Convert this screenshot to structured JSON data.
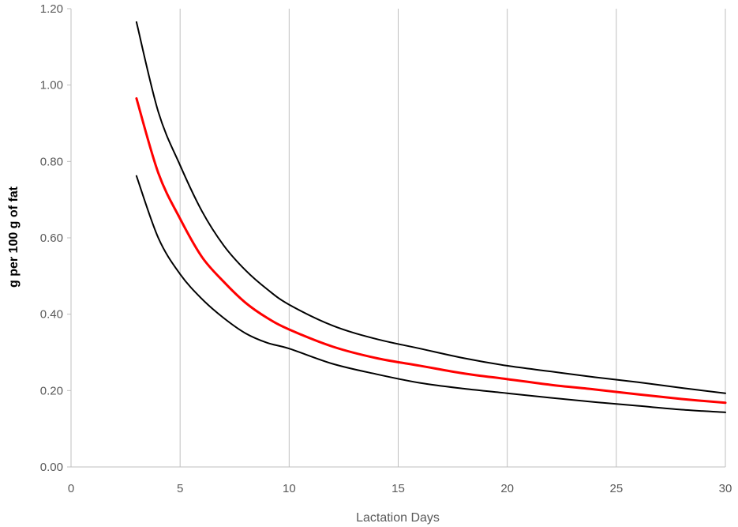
{
  "chart_data": {
    "type": "line",
    "title": "",
    "xlabel": "Lactation Days",
    "ylabel": "g per 100 g of fat",
    "xlim": [
      0,
      30
    ],
    "ylim": [
      0,
      1.2
    ],
    "x_ticks": [
      "0",
      "5",
      "10",
      "15",
      "20",
      "25",
      "30"
    ],
    "y_ticks": [
      "0.00",
      "0.20",
      "0.40",
      "0.60",
      "0.80",
      "1.00",
      "1.20"
    ],
    "grid": "vertical-major",
    "legend": "none",
    "series": [
      {
        "color": "#000000",
        "x": [
          3,
          4,
          5,
          6,
          7,
          8,
          9,
          10,
          12,
          14,
          16,
          18,
          20,
          22,
          24,
          26,
          28,
          30
        ],
        "values": [
          1.165,
          0.93,
          0.79,
          0.67,
          0.58,
          0.515,
          0.465,
          0.425,
          0.37,
          0.335,
          0.31,
          0.285,
          0.265,
          0.25,
          0.235,
          0.222,
          0.207,
          0.193
        ]
      },
      {
        "color": "#ff0000",
        "x": [
          3,
          4,
          5,
          6,
          7,
          8,
          9,
          10,
          12,
          14,
          16,
          18,
          20,
          22,
          24,
          26,
          28,
          30
        ],
        "values": [
          0.965,
          0.77,
          0.65,
          0.55,
          0.485,
          0.43,
          0.39,
          0.36,
          0.315,
          0.285,
          0.265,
          0.245,
          0.23,
          0.215,
          0.203,
          0.19,
          0.178,
          0.168
        ]
      },
      {
        "color": "#000000",
        "x": [
          3,
          4,
          5,
          6,
          7,
          8,
          9,
          10,
          12,
          14,
          16,
          18,
          20,
          22,
          24,
          26,
          28,
          30
        ],
        "values": [
          0.762,
          0.6,
          0.505,
          0.44,
          0.39,
          0.35,
          0.325,
          0.31,
          0.27,
          0.243,
          0.22,
          0.205,
          0.193,
          0.181,
          0.17,
          0.16,
          0.15,
          0.143
        ]
      }
    ]
  }
}
